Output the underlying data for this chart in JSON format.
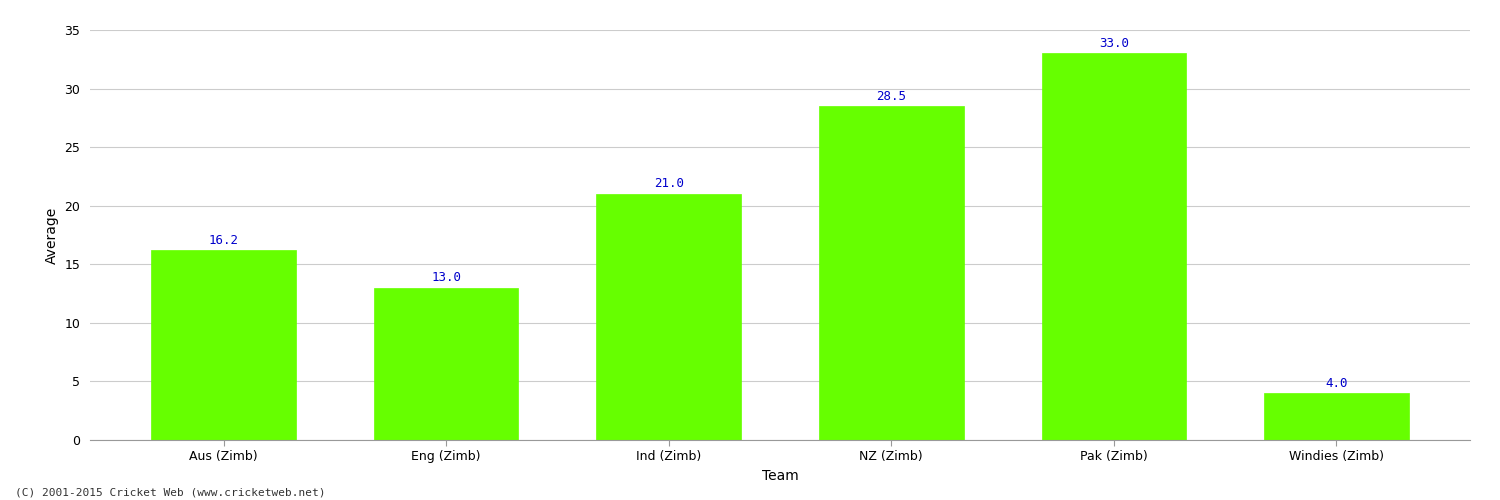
{
  "categories": [
    "Aus (Zimb)",
    "Eng (Zimb)",
    "Ind (Zimb)",
    "NZ (Zimb)",
    "Pak (Zimb)",
    "Windies (Zimb)"
  ],
  "values": [
    16.2,
    13.0,
    21.0,
    28.5,
    33.0,
    4.0
  ],
  "bar_color": "#66ff00",
  "bar_edge_color": "#66ff00",
  "label_color": "#0000cc",
  "ylabel": "Average",
  "xlabel": "Team",
  "ylim": [
    0,
    35
  ],
  "yticks": [
    0,
    5,
    10,
    15,
    20,
    25,
    30,
    35
  ],
  "grid_color": "#cccccc",
  "background_color": "#ffffff",
  "label_fontsize": 9,
  "axis_fontsize": 10,
  "tick_fontsize": 9,
  "footer_text": "(C) 2001-2015 Cricket Web (www.cricketweb.net)",
  "footer_fontsize": 8,
  "bar_width": 0.65
}
